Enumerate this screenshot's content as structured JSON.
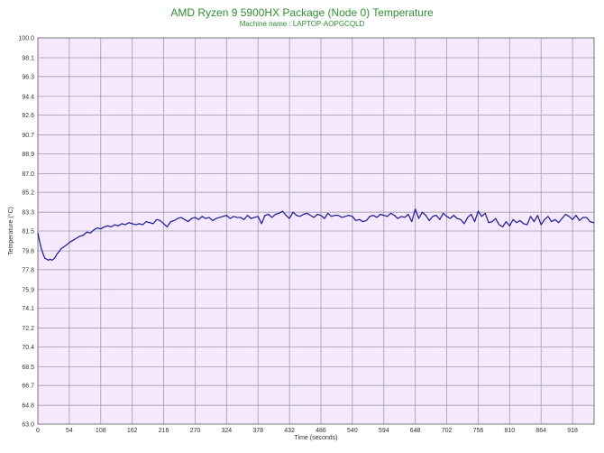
{
  "chart_data": {
    "type": "line",
    "title": "AMD Ryzen 9 5900HX Package (Node 0) Temperature",
    "subtitle": "Machine name : LAPTOP-AOPGCQLD",
    "xlabel": "Time (seconds)",
    "ylabel": "Temperature (°C)",
    "xlim": [
      0,
      955
    ],
    "ylim": [
      63.0,
      100.0
    ],
    "x_ticks": [
      "0",
      "54",
      "108",
      "162",
      "216",
      "270",
      "324",
      "378",
      "432",
      "486",
      "540",
      "594",
      "648",
      "702",
      "756",
      "810",
      "864",
      "918"
    ],
    "y_ticks": [
      "100.0",
      "98.1",
      "96.3",
      "94.4",
      "92.6",
      "90.7",
      "88.9",
      "87.0",
      "85.2",
      "83.3",
      "81.5",
      "79.6",
      "77.8",
      "75.9",
      "74.1",
      "72.2",
      "70.4",
      "68.5",
      "66.7",
      "64.8",
      "63.0"
    ],
    "grid": true,
    "colors": {
      "plot_background": "#f5e8ff",
      "grid": "#a09ea7",
      "series": "#1f1f96",
      "title": "#2f8f2f"
    },
    "series": [
      {
        "x": [
          0,
          3,
          6,
          9,
          12,
          15,
          18,
          21,
          24,
          27,
          30,
          33,
          36,
          40,
          45,
          50,
          54,
          60,
          66,
          72,
          78,
          84,
          90,
          96,
          102,
          108,
          114,
          120,
          126,
          132,
          138,
          144,
          150,
          156,
          162,
          168,
          174,
          180,
          186,
          192,
          198,
          204,
          210,
          216,
          222,
          228,
          234,
          240,
          246,
          252,
          258,
          264,
          270,
          276,
          282,
          288,
          294,
          300,
          306,
          312,
          318,
          324,
          330,
          336,
          342,
          348,
          354,
          360,
          366,
          372,
          378,
          384,
          390,
          396,
          402,
          408,
          414,
          420,
          426,
          432,
          438,
          444,
          450,
          456,
          462,
          468,
          474,
          480,
          486,
          492,
          498,
          504,
          510,
          516,
          522,
          528,
          534,
          540,
          546,
          552,
          558,
          564,
          570,
          576,
          582,
          588,
          594,
          600,
          606,
          612,
          618,
          624,
          630,
          636,
          642,
          648,
          654,
          660,
          666,
          672,
          678,
          684,
          690,
          696,
          702,
          708,
          714,
          720,
          726,
          732,
          738,
          744,
          750,
          756,
          762,
          768,
          774,
          780,
          786,
          792,
          798,
          804,
          810,
          816,
          822,
          828,
          834,
          840,
          846,
          852,
          858,
          864,
          870,
          876,
          882,
          888,
          894,
          900,
          906,
          912,
          918,
          924,
          930,
          936,
          942,
          948,
          954
        ],
        "values": [
          81.3,
          80.5,
          79.8,
          79.3,
          78.9,
          78.8,
          78.7,
          78.8,
          78.7,
          78.8,
          79.0,
          79.3,
          79.5,
          79.8,
          80.0,
          80.2,
          80.4,
          80.6,
          80.8,
          81.0,
          81.1,
          81.4,
          81.3,
          81.6,
          81.8,
          81.7,
          81.9,
          82.0,
          81.9,
          82.1,
          82.0,
          82.2,
          82.1,
          82.3,
          82.2,
          82.1,
          82.2,
          82.1,
          82.4,
          82.3,
          82.2,
          82.6,
          82.5,
          82.2,
          81.9,
          82.4,
          82.5,
          82.7,
          82.8,
          82.6,
          82.4,
          82.7,
          82.8,
          82.6,
          82.9,
          82.7,
          82.8,
          82.5,
          82.7,
          82.8,
          82.9,
          83.0,
          82.7,
          82.9,
          82.8,
          82.8,
          82.6,
          83.0,
          82.7,
          82.8,
          82.9,
          82.2,
          83.0,
          83.1,
          82.8,
          83.1,
          83.2,
          83.4,
          83.0,
          82.7,
          83.3,
          83.0,
          82.9,
          83.1,
          83.2,
          83.0,
          82.8,
          83.1,
          83.0,
          82.7,
          83.2,
          82.9,
          83.0,
          83.0,
          82.8,
          82.9,
          83.0,
          82.9,
          82.5,
          82.6,
          82.4,
          82.5,
          82.9,
          83.0,
          82.8,
          83.1,
          83.0,
          82.9,
          83.2,
          83.0,
          82.7,
          82.9,
          82.8,
          83.1,
          82.4,
          83.6,
          82.7,
          83.3,
          83.0,
          82.5,
          82.9,
          83.0,
          82.6,
          83.2,
          82.9,
          82.7,
          83.0,
          82.7,
          82.6,
          82.2,
          82.8,
          83.1,
          82.4,
          83.4,
          82.9,
          83.2,
          82.3,
          82.4,
          82.7,
          82.1,
          81.9,
          82.4,
          82.0,
          82.6,
          82.3,
          82.5,
          82.2,
          82.1,
          82.9,
          82.4,
          83.0,
          82.1,
          82.6,
          82.9,
          82.4,
          82.6,
          82.3,
          82.7,
          83.1,
          82.9,
          82.6,
          83.0,
          82.5,
          82.8,
          82.8,
          82.4,
          82.3
        ]
      }
    ]
  }
}
